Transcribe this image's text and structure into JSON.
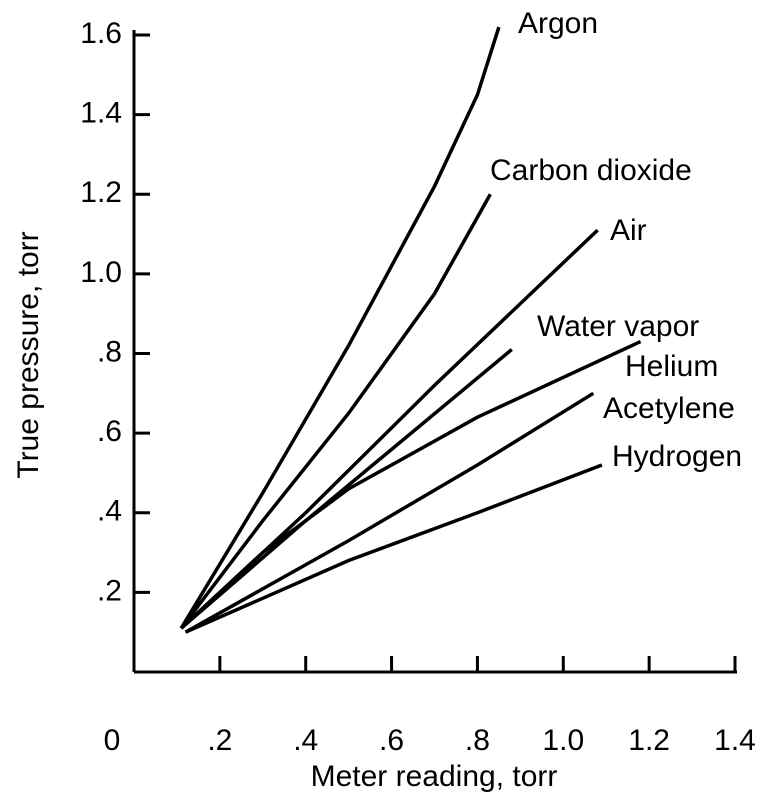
{
  "chart_data": {
    "type": "line",
    "x_label": "Meter reading, torr",
    "y_label": "True pressure, torr",
    "xlim": [
      0,
      1.4
    ],
    "ylim": [
      0,
      1.6
    ],
    "xticks": [
      0,
      {
        "value": 0.2,
        "label": ".2"
      },
      {
        "value": 0.4,
        "label": ".4"
      },
      {
        "value": 0.6,
        "label": ".6"
      },
      {
        "value": 0.8,
        "label": ".8"
      },
      {
        "value": 1.0,
        "label": "1.0"
      },
      {
        "value": 1.2,
        "label": "1.2"
      },
      {
        "value": 1.4,
        "label": "1.4"
      }
    ],
    "yticks": [
      {
        "value": 0.2,
        "label": ".2"
      },
      {
        "value": 0.4,
        "label": ".4"
      },
      {
        "value": 0.6,
        "label": ".6"
      },
      {
        "value": 0.8,
        "label": ".8"
      },
      {
        "value": 1.0,
        "label": "1.0"
      },
      {
        "value": 1.2,
        "label": "1.2"
      },
      {
        "value": 1.4,
        "label": "1.4"
      },
      {
        "value": 1.6,
        "label": "1.6"
      }
    ],
    "color": "#000000",
    "series": [
      {
        "name": "Argon",
        "x": [
          0.11,
          0.3,
          0.5,
          0.7,
          0.8,
          0.85
        ],
        "values": [
          0.11,
          0.45,
          0.82,
          1.22,
          1.45,
          1.62
        ]
      },
      {
        "name": "Carbon dioxide",
        "x": [
          0.11,
          0.3,
          0.5,
          0.7,
          0.83
        ],
        "values": [
          0.11,
          0.38,
          0.65,
          0.95,
          1.2
        ]
      },
      {
        "name": "Air",
        "x": [
          0.11,
          0.4,
          0.7,
          1.08
        ],
        "values": [
          0.11,
          0.4,
          0.72,
          1.11
        ]
      },
      {
        "name": "Water vapor",
        "x": [
          0.11,
          0.4,
          0.88
        ],
        "values": [
          0.11,
          0.38,
          0.81
        ]
      },
      {
        "name": "Helium",
        "x": [
          0.11,
          0.3,
          0.5,
          0.8,
          1.18
        ],
        "values": [
          0.11,
          0.3,
          0.46,
          0.64,
          0.83
        ]
      },
      {
        "name": "Acetylene",
        "x": [
          0.12,
          0.5,
          0.8,
          1.07
        ],
        "values": [
          0.1,
          0.33,
          0.52,
          0.7
        ]
      },
      {
        "name": "Hydrogen",
        "x": [
          0.12,
          0.5,
          0.8,
          1.09
        ],
        "values": [
          0.1,
          0.28,
          0.4,
          0.52
        ]
      }
    ]
  }
}
